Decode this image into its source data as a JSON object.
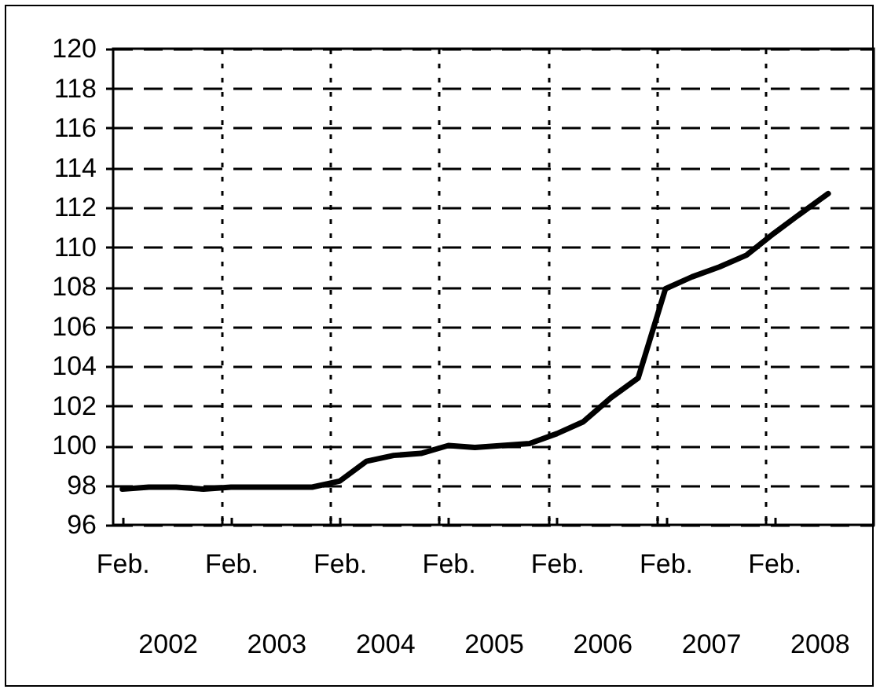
{
  "chart_data": {
    "type": "line",
    "x": [
      "2002-02",
      "2002-05",
      "2002-08",
      "2002-11",
      "2003-02",
      "2003-05",
      "2003-08",
      "2003-11",
      "2004-02",
      "2004-05",
      "2004-08",
      "2004-11",
      "2005-02",
      "2005-05",
      "2005-08",
      "2005-11",
      "2006-02",
      "2006-05",
      "2006-08",
      "2006-11",
      "2007-02",
      "2007-05",
      "2007-08",
      "2007-11",
      "2008-02",
      "2008-05",
      "2008-08"
    ],
    "series": [
      {
        "color": "#000000",
        "values": [
          97.8,
          97.9,
          97.9,
          97.8,
          97.9,
          97.9,
          97.9,
          97.9,
          98.2,
          99.2,
          99.5,
          99.6,
          100.0,
          99.9,
          100.0,
          100.1,
          100.6,
          101.2,
          102.4,
          103.4,
          107.9,
          108.5,
          109.0,
          109.6,
          110.7,
          111.7,
          112.7
        ]
      }
    ],
    "xlim": [
      "2002-01",
      "2009-01"
    ],
    "xticks": [
      {
        "value": "2002-02",
        "label": "Feb."
      },
      {
        "value": "2003-01",
        "label": null
      },
      {
        "value": "2003-02",
        "label": "Feb."
      },
      {
        "value": "2004-01",
        "label": null
      },
      {
        "value": "2004-02",
        "label": "Feb."
      },
      {
        "value": "2005-01",
        "label": null
      },
      {
        "value": "2005-02",
        "label": "Feb."
      },
      {
        "value": "2006-01",
        "label": null
      },
      {
        "value": "2006-02",
        "label": "Feb."
      },
      {
        "value": "2007-01",
        "label": null
      },
      {
        "value": "2007-02",
        "label": "Feb."
      },
      {
        "value": "2008-01",
        "label": null
      },
      {
        "value": "2008-02",
        "label": "Feb."
      }
    ],
    "x2lim": [
      2001.5,
      2008.5
    ],
    "x2ticks": [
      2002,
      2003,
      2004,
      2005,
      2006,
      2007,
      2008
    ],
    "ylim": [
      96,
      120
    ],
    "yticks": [
      96,
      98,
      100,
      102,
      104,
      106,
      108,
      110,
      112,
      114,
      116,
      118,
      120
    ],
    "grid": true,
    "marker": "none",
    "line_style": "solid"
  }
}
